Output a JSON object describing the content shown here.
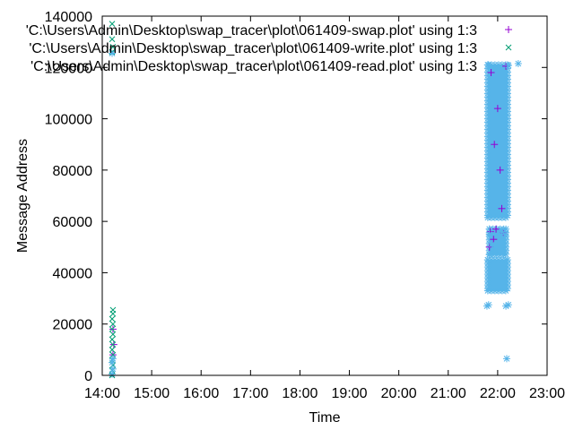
{
  "chart_data": {
    "type": "scatter",
    "xlabel": "Time",
    "ylabel": "Message Address",
    "xlim": [
      "14:00",
      "23:00"
    ],
    "ylim": [
      0,
      140000
    ],
    "x_ticks": [
      "14:00",
      "15:00",
      "16:00",
      "17:00",
      "18:00",
      "19:00",
      "20:00",
      "21:00",
      "22:00",
      "23:00"
    ],
    "y_ticks": [
      0,
      20000,
      40000,
      60000,
      80000,
      100000,
      120000,
      140000
    ],
    "grid": false,
    "legend_position": "top-right",
    "series": [
      {
        "name": "'C:\\Users\\Admin\\Desktop\\swap_tracer\\plot\\061409-swap.plot' using 1:3",
        "marker": "plus",
        "color": "#9400d3",
        "points": [
          [
            "14:13",
            8000
          ],
          [
            "14:13",
            18000
          ],
          [
            "14:14",
            12000
          ],
          [
            "21:50",
            50000
          ],
          [
            "21:51",
            56000
          ],
          [
            "21:55",
            53000
          ],
          [
            "21:58",
            57000
          ],
          [
            "22:05",
            65000
          ],
          [
            "22:07",
            55500
          ],
          [
            "22:00",
            104000
          ],
          [
            "21:52",
            118000
          ],
          [
            "21:56",
            90000
          ],
          [
            "22:03",
            80000
          ],
          [
            "22:10",
            120500
          ]
        ]
      },
      {
        "name": "'C:\\Users\\Admin\\Desktop\\swap_tracer\\plot\\061409-write.plot' using 1:3",
        "marker": "x",
        "color": "#009e73",
        "points": [
          [
            "14:12",
            0
          ],
          [
            "14:12",
            2000
          ],
          [
            "14:13",
            4000
          ],
          [
            "14:12",
            6000
          ],
          [
            "14:13",
            8000
          ],
          [
            "14:12",
            10000
          ],
          [
            "14:13",
            12000
          ],
          [
            "14:12",
            14000
          ],
          [
            "14:13",
            16000
          ],
          [
            "14:12",
            18000
          ],
          [
            "14:13",
            20000
          ],
          [
            "14:12",
            22000
          ],
          [
            "14:13",
            24000
          ],
          [
            "14:13",
            25500
          ],
          [
            "14:12",
            126000
          ],
          [
            "14:13",
            128000
          ],
          [
            "14:12",
            131000
          ],
          [
            "14:12",
            137000
          ]
        ]
      },
      {
        "name": "'C:\\Users\\Admin\\Desktop\\swap_tracer\\plot\\061409-read.plot' using 1:3",
        "marker": "star",
        "color": "#56b4e9",
        "points": [
          [
            "14:12",
            500
          ],
          [
            "14:13",
            2500
          ],
          [
            "14:12",
            5000
          ],
          [
            "14:13",
            6500
          ],
          [
            "14:12",
            125500
          ],
          [
            "21:47",
            27000
          ],
          [
            "21:49",
            27500
          ],
          [
            "22:10",
            27000
          ],
          [
            "22:13",
            27500
          ],
          [
            "22:11",
            6500
          ],
          [
            "21:50",
            55000
          ],
          [
            "21:53",
            51000
          ],
          [
            "22:05",
            56000
          ],
          [
            "22:09",
            55000
          ],
          [
            "21:57",
            49000
          ],
          [
            "22:25",
            121500
          ],
          [
            "21:49",
            121000
          ]
        ],
        "bands": [
          {
            "x": [
              "21:48",
              "22:12"
            ],
            "y": [
              33000,
              45000
            ]
          },
          {
            "x": [
              "21:48",
              "22:12"
            ],
            "y": [
              61500,
              121000
            ]
          },
          {
            "x": [
              "21:50",
              "22:10"
            ],
            "y": [
              47000,
              57000
            ]
          }
        ]
      }
    ]
  }
}
